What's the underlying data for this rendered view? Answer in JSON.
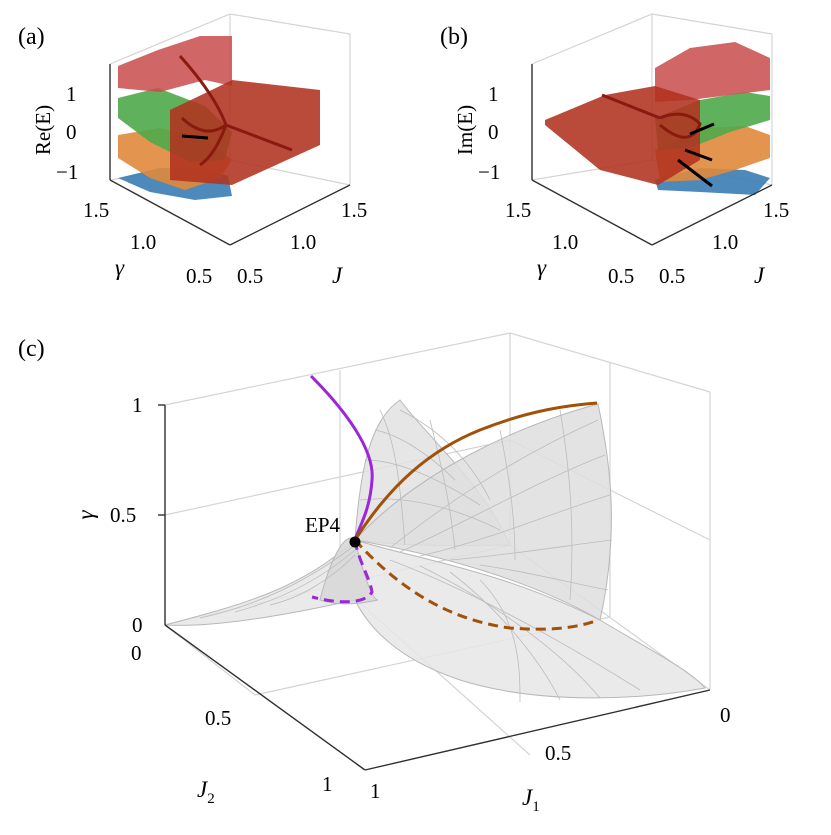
{
  "panels": {
    "a": {
      "label": "(a)",
      "zlabel": "Re(E)",
      "xlabel": "γ",
      "ylabel": "J"
    },
    "b": {
      "label": "(b)",
      "zlabel": "Im(E)",
      "xlabel": "γ",
      "ylabel": "J"
    },
    "c": {
      "label": "(c)",
      "zlabel": "γ",
      "xlabel": "J",
      "xlabel_sub": "1",
      "ylabel": "J",
      "ylabel_sub": "2",
      "annotation": "EP4"
    }
  },
  "colors": {
    "red_band": "#c94b4b",
    "green_band": "#4fa94a",
    "orange_band": "#e08a3c",
    "blue_band": "#3f7fb5",
    "dark_red_curve": "#8a1a10",
    "black_curve": "#000000",
    "purple_curve": "#9b27d6",
    "brown_curve": "#a0520a",
    "surface": "#e6e6e6",
    "mesh": "#b8b8b8"
  },
  "chart_data": [
    {
      "panel": "a",
      "type": "surface",
      "z_ticks": [
        "1",
        "0",
        "−1"
      ],
      "gamma_ticks": [
        "1.5",
        "1.0",
        "0.5"
      ],
      "J_ticks": [
        "0.5",
        "1.0",
        "1.5"
      ],
      "gamma_range": [
        0.5,
        1.5
      ],
      "J_range": [
        0.5,
        1.5
      ],
      "z_range": [
        -1.4,
        1.4
      ],
      "sheets": [
        "red",
        "green",
        "orange",
        "blue"
      ]
    },
    {
      "panel": "b",
      "type": "surface",
      "z_ticks": [
        "1",
        "0",
        "−1"
      ],
      "gamma_ticks": [
        "1.5",
        "1.0",
        "0.5"
      ],
      "J_ticks": [
        "0.5",
        "1.0",
        "1.5"
      ],
      "gamma_range": [
        0.5,
        1.5
      ],
      "J_range": [
        0.5,
        1.5
      ],
      "z_range": [
        -1.4,
        1.4
      ],
      "sheets": [
        "red",
        "green",
        "orange",
        "blue"
      ]
    },
    {
      "panel": "c",
      "type": "surface",
      "z_ticks": [
        "1",
        "0.5",
        "0"
      ],
      "J2_ticks": [
        "0",
        "0.5",
        "1"
      ],
      "J1_ticks": [
        "0",
        "0.5",
        "1"
      ],
      "J1_range": [
        0,
        1
      ],
      "J2_range": [
        0,
        1
      ],
      "gamma_range": [
        0,
        1
      ],
      "curves": [
        {
          "color": "purple",
          "style": "solid"
        },
        {
          "color": "brown",
          "style": "solid"
        },
        {
          "color": "purple",
          "style": "dashed"
        },
        {
          "color": "brown",
          "style": "dashed"
        }
      ]
    }
  ]
}
